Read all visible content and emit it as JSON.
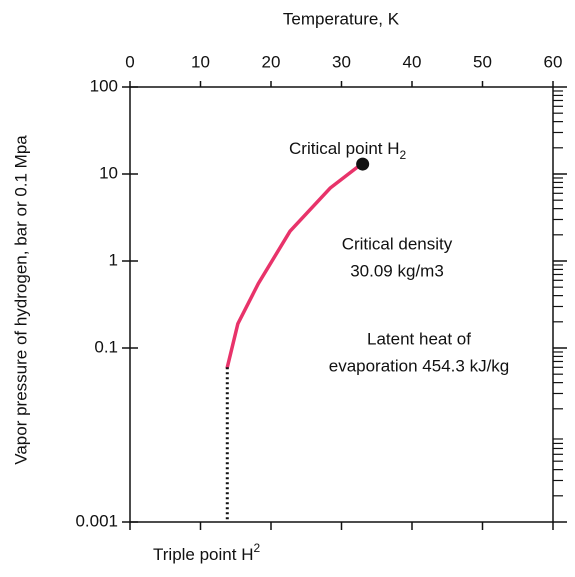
{
  "chart_data": {
    "type": "line",
    "title": "Temperature, K",
    "y_label": "Vapor pressure of hydrogen, bar or 0.1 Mpa",
    "x": [
      13.8,
      15.3,
      18.2,
      22.7,
      28.4,
      32.6
    ],
    "series": [
      {
        "name": "Vapor pressure H2",
        "color": "#e8336a",
        "values": [
          0.06,
          0.19,
          0.55,
          2.2,
          6.9,
          12.6
        ]
      }
    ],
    "critical_point": {
      "x": 33,
      "y": 13,
      "color": "#111111"
    },
    "triple_point_line": {
      "x": 13.8,
      "y": 0.06
    },
    "xlim": [
      0,
      60
    ],
    "xticks": [
      0,
      10,
      20,
      30,
      40,
      50,
      60
    ],
    "ylim": [
      0.001,
      100
    ],
    "yticks": [
      0.001,
      0.1,
      1,
      10,
      100
    ],
    "log_y": true,
    "minor_ticks": true,
    "annotations": {
      "critical_point": {
        "text": "Critical point H",
        "subscript": "2"
      },
      "critical_density": [
        "Critical density",
        "30.09 kg/m3"
      ],
      "latent_heat": [
        "Latent heat of",
        "evaporation 454.3 kJ/kg"
      ],
      "triple_point": {
        "text": "Triple point H",
        "superscript": "2"
      }
    }
  }
}
